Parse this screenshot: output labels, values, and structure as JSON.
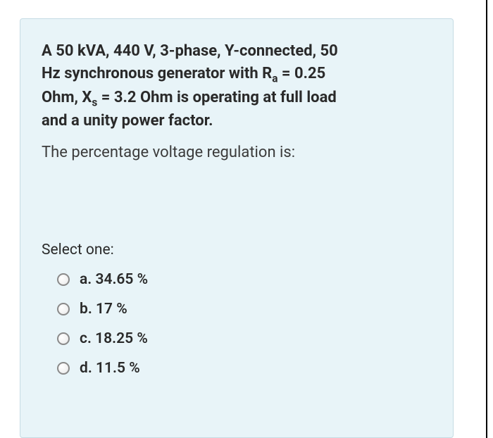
{
  "card": {
    "background_color": "#e8f4f8",
    "border_color": "#c6dce4",
    "stem": {
      "line1": "A 50 kVA, 440 V, 3-phase, Y-connected, 50",
      "line2a": "Hz synchronous generator with R",
      "sub1": "a",
      "line2b": " = 0.25",
      "line3a": "Ohm, X",
      "sub2": "s",
      "line3b": " = 3.2 Ohm is operating at full load",
      "line4": "and a unity power factor.",
      "fontsize": 22,
      "fontweight": 700,
      "color": "#2a2a2a"
    },
    "prompt": {
      "text": "The percentage voltage regulation is:",
      "fontsize": 22,
      "fontweight": 400,
      "color": "#3b3b3b"
    },
    "select_label": "Select one:",
    "options": [
      {
        "key": "a",
        "label": "a. 34.65 %"
      },
      {
        "key": "b",
        "label": "b. 17 %"
      },
      {
        "key": "c",
        "label": "c. 18.25 %"
      },
      {
        "key": "d",
        "label": "d. 11.5 %"
      }
    ],
    "option_fontsize": 21,
    "option_fontweight": 600,
    "radio_border": "#8a8a8a"
  }
}
